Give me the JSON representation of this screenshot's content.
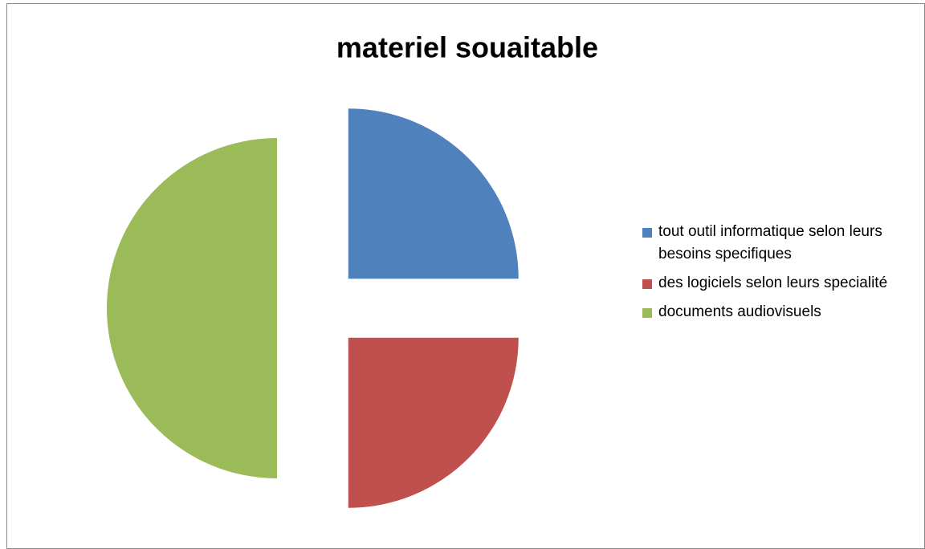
{
  "chart_data": {
    "type": "pie",
    "title": "materiel souaitable",
    "categories": [
      "tout outil informatique selon leurs besoins specifiques",
      "des logiciels selon leurs specialité",
      "documents audiovisuels"
    ],
    "values": [
      25,
      25,
      50
    ],
    "colors": [
      "#4f81bd",
      "#c0504d",
      "#9bbb59"
    ],
    "legend": "right"
  }
}
